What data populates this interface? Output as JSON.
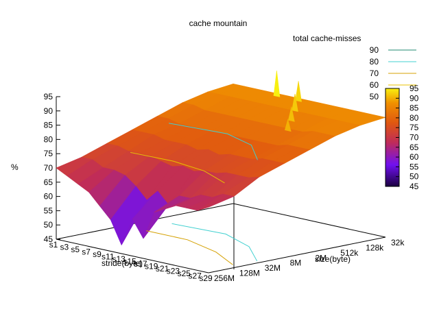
{
  "chart_data": {
    "type": "surface3d",
    "title": "cache mountain",
    "zlabel": "%",
    "xlabel": "stride(byte)",
    "ylabel": "size(byte)",
    "zlim": [
      45,
      95
    ],
    "z_ticks": [
      45,
      50,
      55,
      60,
      65,
      70,
      75,
      80,
      85,
      90,
      95
    ],
    "stride_ticks": [
      "s1",
      "s3",
      "s5",
      "s7",
      "s9",
      "s11",
      "s13",
      "s15",
      "s17",
      "s19",
      "s21",
      "s23",
      "s25",
      "s27",
      "s29"
    ],
    "size_ticks": [
      "256M",
      "128M",
      "32M",
      "8M",
      "2M",
      "512k",
      "128k",
      "32k"
    ],
    "colorbar": {
      "ticks": [
        45,
        50,
        55,
        60,
        65,
        70,
        75,
        80,
        85,
        90,
        95
      ],
      "stops": [
        "#1a0040",
        "#7010f0",
        "#c02c58",
        "#e05810",
        "#f09000",
        "#f8f010"
      ]
    },
    "legend": {
      "title": "total cache-misses",
      "position": "top-right",
      "entries": [
        {
          "label": "90",
          "color": "#1f8a70"
        },
        {
          "label": "80",
          "color": "#40d0d0"
        },
        {
          "label": "70",
          "color": "#d4a000"
        },
        {
          "label": "60",
          "color": "#e8c000"
        },
        {
          "label": "50",
          "color": "#ffffff"
        }
      ]
    },
    "surface": {
      "cols_stride": 15,
      "rows_size": 8,
      "values": [
        [
          70,
          68,
          66,
          64,
          60,
          56,
          48,
          58,
          52,
          62,
          64,
          66,
          66,
          66,
          68
        ],
        [
          72,
          72,
          70,
          70,
          69,
          66,
          62,
          66,
          62,
          66,
          66,
          68,
          68,
          70,
          70
        ],
        [
          75,
          75,
          74,
          74,
          74,
          73,
          72,
          73,
          72,
          73,
          73,
          74,
          74,
          74,
          75
        ],
        [
          78,
          78,
          78,
          77,
          77,
          77,
          76,
          77,
          76,
          77,
          77,
          77,
          78,
          78,
          78
        ],
        [
          81,
          81,
          80,
          80,
          80,
          80,
          80,
          80,
          80,
          80,
          80,
          80,
          81,
          81,
          81
        ],
        [
          84,
          84,
          83,
          83,
          83,
          83,
          83,
          83,
          83,
          83,
          83,
          83,
          84,
          84,
          84
        ],
        [
          86,
          86,
          86,
          86,
          86,
          86,
          86,
          86,
          86,
          86,
          86,
          86,
          86,
          86,
          86
        ],
        [
          87,
          87,
          87,
          87,
          87,
          87,
          87,
          87,
          87,
          87,
          87,
          87,
          87,
          87,
          87
        ]
      ],
      "spikes": [
        {
          "stride": "s9",
          "size": "32k",
          "value": 95
        },
        {
          "stride": "s13",
          "size": "32k",
          "value": 93
        },
        {
          "stride": "s17",
          "size": "128k",
          "value": 92
        },
        {
          "stride": "s21",
          "size": "512k",
          "value": 91
        },
        {
          "stride": "s25",
          "size": "2M",
          "value": 90
        }
      ]
    }
  }
}
